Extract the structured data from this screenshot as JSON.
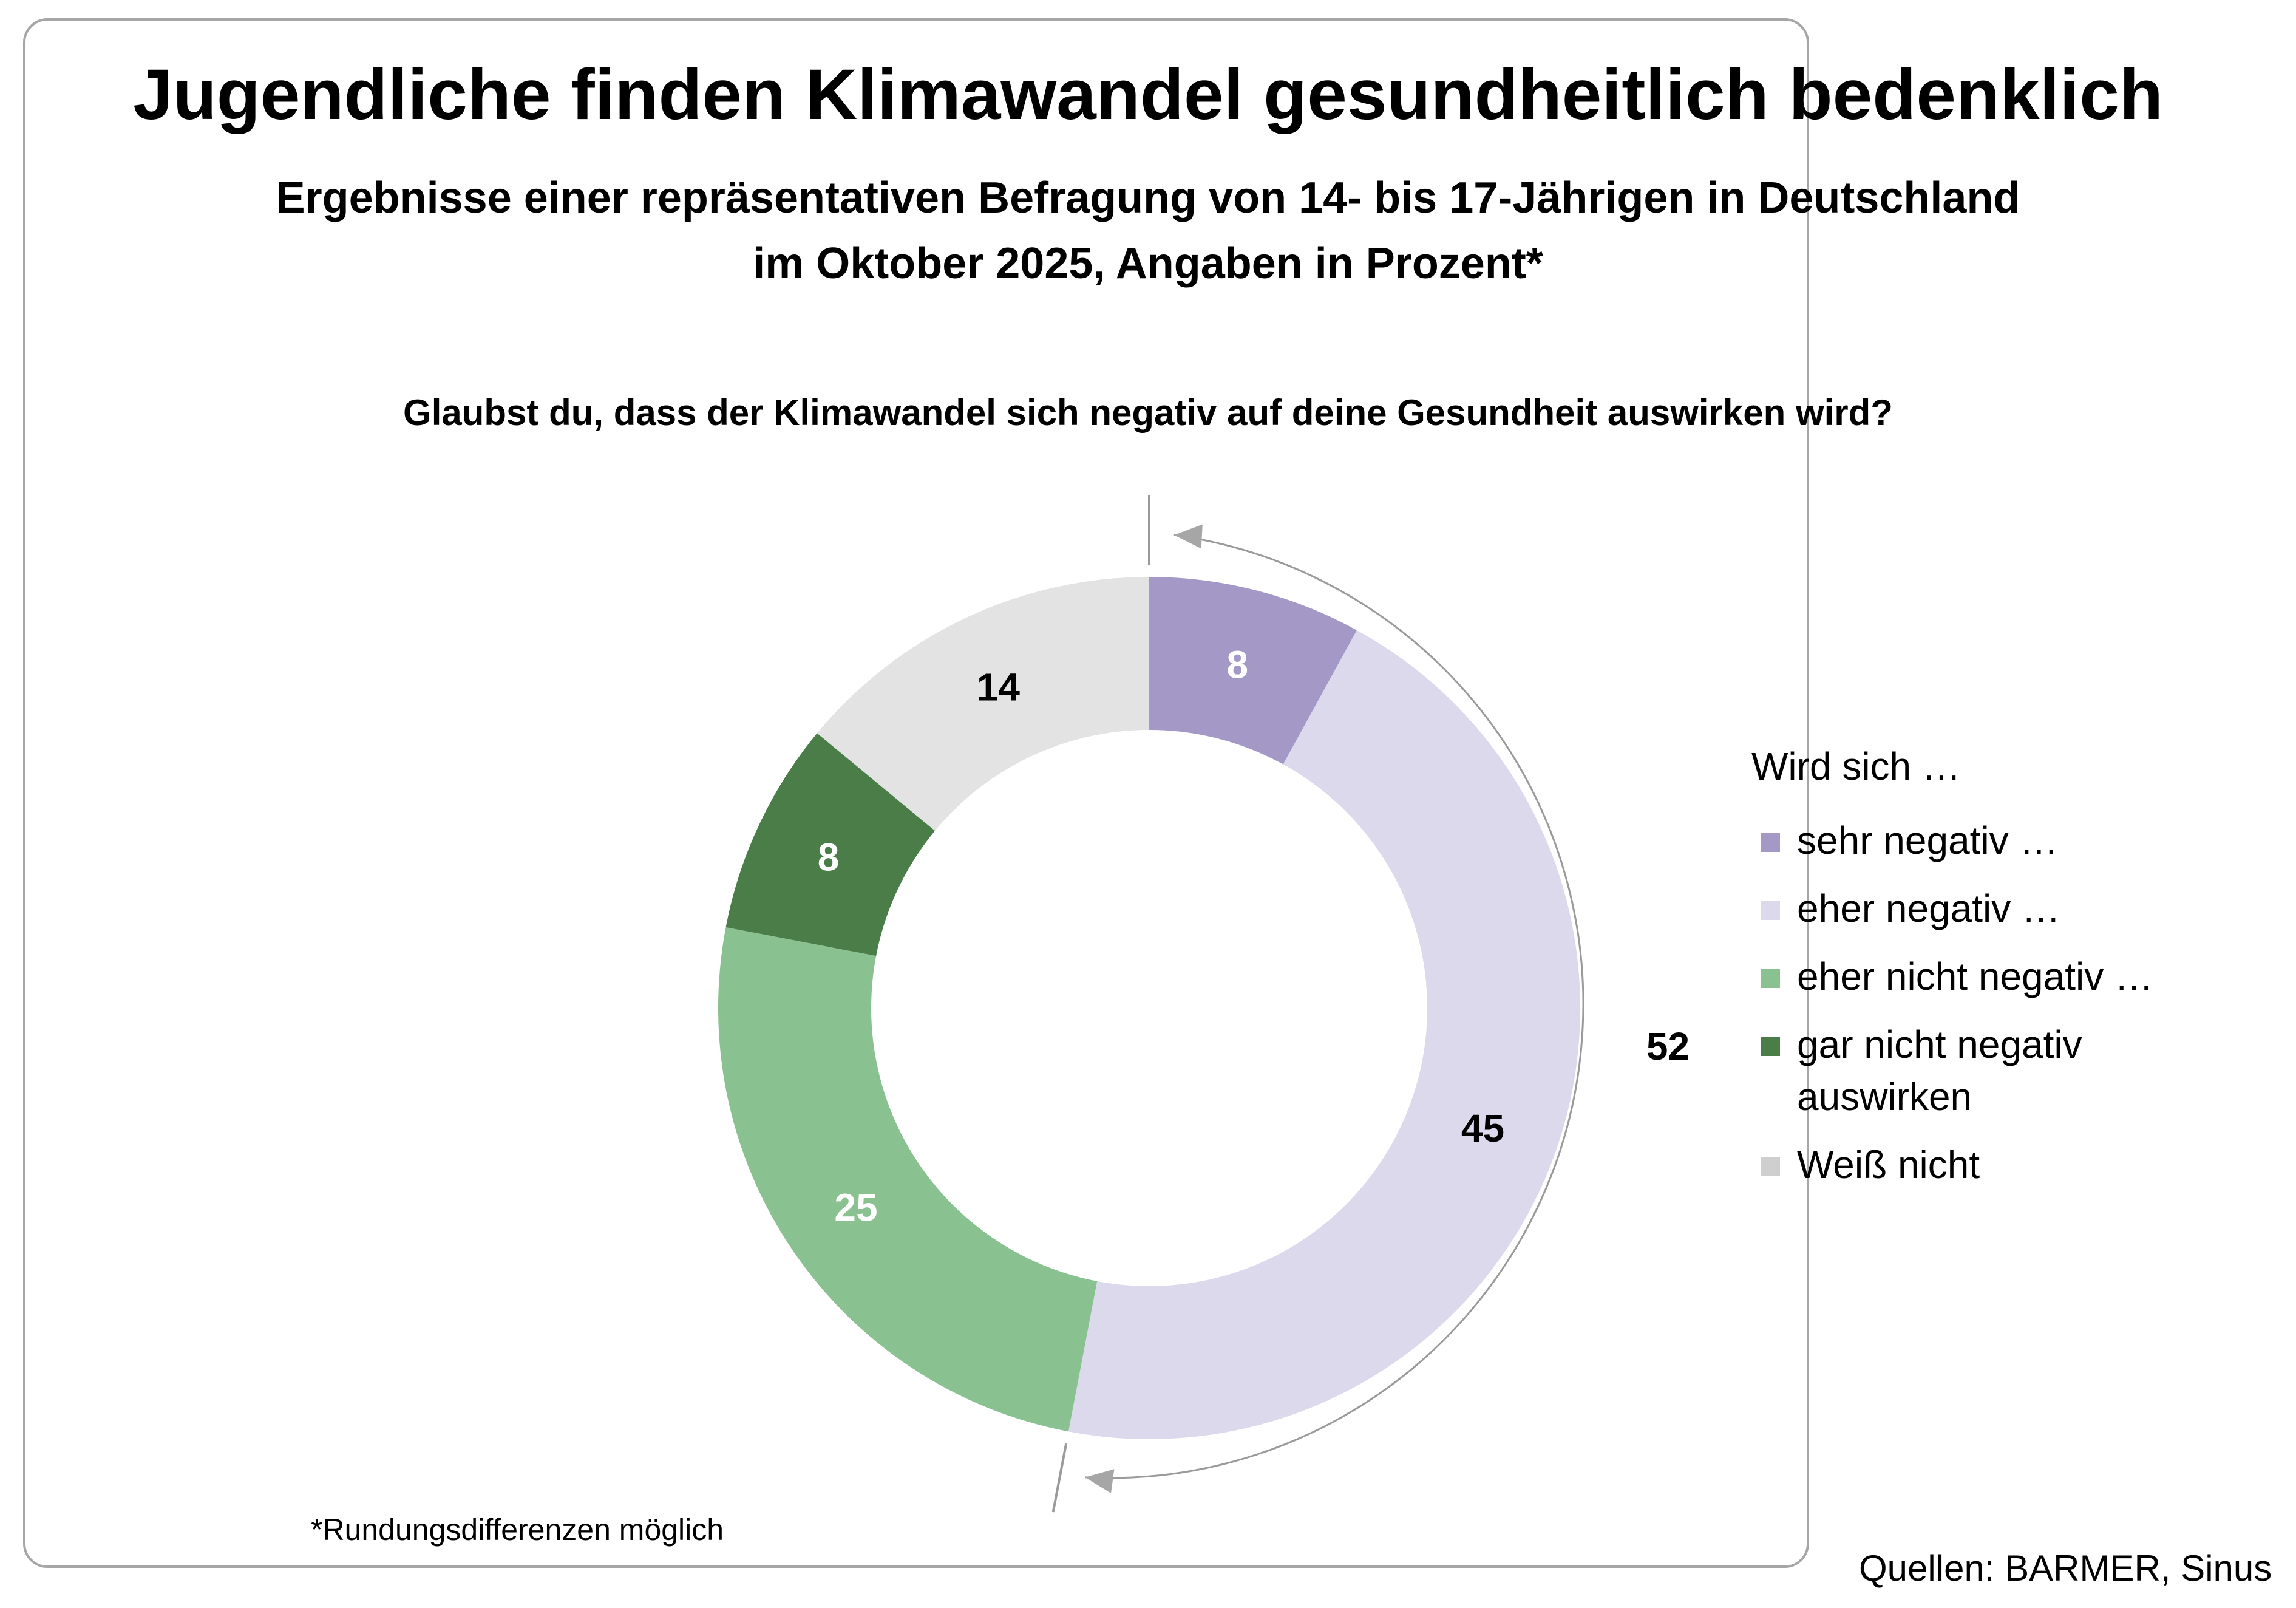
{
  "title": "Jugendliche finden Klimawandel gesundheitlich bedenklich",
  "subtitle_line1": "Ergebnisse einer repräsentativen Befragung von 14- bis 17-Jährigen in Deutschland",
  "subtitle_line2": "im Oktober 2025, Angaben in Prozent*",
  "question": "Glaubst du, dass der Klimawandel sich negativ auf deine Gesundheit auswirken wird?",
  "legend_title": "Wird sich …",
  "footnote": "*Rundungsdifferenzen möglich",
  "source": "Quellen: BARMER, Sinus",
  "chart_data": {
    "type": "pie",
    "variant": "donut",
    "categories": [
      "sehr negativ …",
      "eher negativ …",
      "eher nicht negativ …",
      "gar nicht negativ\nauswirken",
      "Weiß nicht"
    ],
    "values": [
      8,
      45,
      25,
      8,
      14
    ],
    "labels": [
      "8",
      "45",
      "25",
      "8",
      "14"
    ],
    "colors": [
      "#a499c6",
      "#dcd9ec",
      "#8ac190",
      "#4a7d47",
      "#e3e3e3"
    ],
    "label_colors": [
      "#ffffff",
      "#000000",
      "#ffffff",
      "#ffffff",
      "#000000"
    ],
    "start": "top",
    "direction": "clockwise",
    "legend_position": "right",
    "bracket": {
      "label": "52",
      "spans": [
        "sehr negativ …",
        "eher negativ …"
      ]
    }
  }
}
